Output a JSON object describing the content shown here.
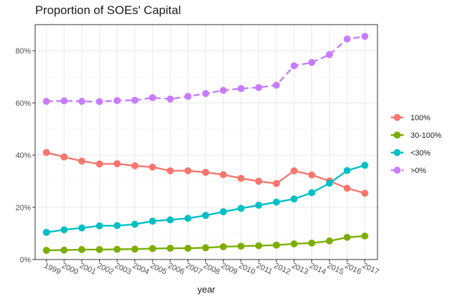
{
  "chart_data": {
    "type": "line",
    "title": "Proportion of SOEs' Capital",
    "xlabel": "year",
    "ylabel": "",
    "x": [
      "1999",
      "2000",
      "2001",
      "2002",
      "2003",
      "2004",
      "2005",
      "2006",
      "2007",
      "2008",
      "2009",
      "2010",
      "2011",
      "2012",
      "2013",
      "2014",
      "2015",
      "2016",
      "2017"
    ],
    "ylim": [
      0,
      0.9
    ],
    "y_ticks": [
      0,
      0.2,
      0.4,
      0.6,
      0.8
    ],
    "y_tick_labels": [
      "0%",
      "20%",
      "40%",
      "60%",
      "80%"
    ],
    "grid": true,
    "legend_position": "right",
    "series": [
      {
        "name": "100%",
        "color": "#F8766D",
        "dash": false,
        "values": [
          0.41,
          0.393,
          0.377,
          0.366,
          0.367,
          0.359,
          0.354,
          0.34,
          0.34,
          0.334,
          0.325,
          0.311,
          0.3,
          0.291,
          0.34,
          0.324,
          0.301,
          0.273,
          0.254
        ]
      },
      {
        "name": "30-100%",
        "color": "#7CAE00",
        "dash": false,
        "values": [
          0.035,
          0.036,
          0.038,
          0.038,
          0.039,
          0.04,
          0.042,
          0.043,
          0.043,
          0.045,
          0.049,
          0.051,
          0.053,
          0.055,
          0.06,
          0.063,
          0.071,
          0.085,
          0.09
        ]
      },
      {
        "name": "<30%",
        "color": "#00BFC4",
        "dash": false,
        "values": [
          0.104,
          0.114,
          0.121,
          0.129,
          0.13,
          0.135,
          0.147,
          0.152,
          0.158,
          0.169,
          0.183,
          0.196,
          0.208,
          0.22,
          0.232,
          0.256,
          0.292,
          0.341,
          0.361
        ]
      },
      {
        "name": ">0%",
        "color": "#C77CFF",
        "dash": true,
        "values": [
          0.606,
          0.608,
          0.606,
          0.605,
          0.609,
          0.61,
          0.62,
          0.615,
          0.625,
          0.636,
          0.648,
          0.655,
          0.659,
          0.668,
          0.742,
          0.755,
          0.785,
          0.845,
          0.855
        ]
      }
    ]
  }
}
